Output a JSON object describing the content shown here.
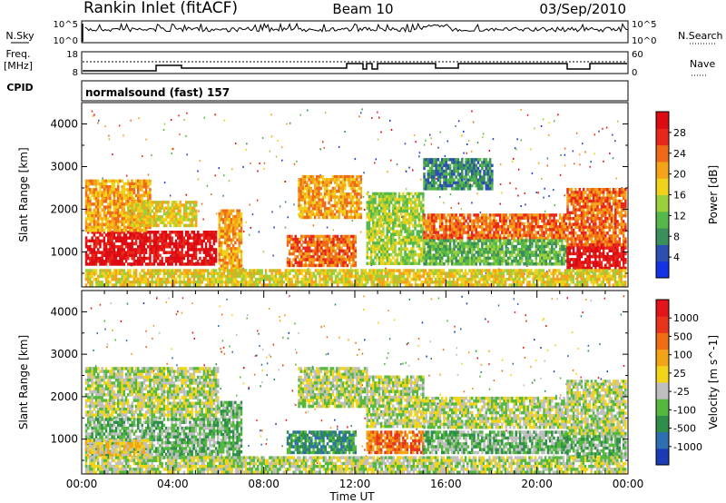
{
  "header": {
    "station": "Rankin Inlet (fitACF)",
    "beam": "Beam 10",
    "date": "03/Sep/2010"
  },
  "summary": {
    "nsky_label": "N.Sky",
    "nsky_ticks": [
      "10^5",
      "10^0"
    ],
    "nsearch_label": "N.Search",
    "nsearch_ticks": [
      "10^5",
      "10^0"
    ],
    "freq_label": "Freq.",
    "freq_unit": "[MHz]",
    "freq_ticks": [
      "18",
      "8"
    ],
    "nave_label": "Nave",
    "nave_ticks": [
      "60",
      "0"
    ],
    "cpid_label": "CPID",
    "mode_text": "normalsound (fast) 157"
  },
  "chart_data": [
    {
      "type": "heatmap",
      "panel": "power",
      "ylabel": "Slant Range [km]",
      "ylim": [
        180,
        4500
      ],
      "yticks": [
        1000,
        2000,
        3000,
        4000
      ],
      "colorbar_label": "Power [dB]",
      "colorbar_ticks": [
        "28",
        "24",
        "20",
        "16",
        "12",
        "8",
        "4"
      ],
      "colors": [
        "#1433e6",
        "#2c4fb0",
        "#3a8f5a",
        "#55b84b",
        "#9ccf3c",
        "#f0d21a",
        "#f5a318",
        "#ef6a18",
        "#e8271a",
        "#dd0b12"
      ],
      "regions": [
        {
          "t": [
            0.15,
            5.9
          ],
          "r": [
            700,
            1500
          ],
          "level": 9
        },
        {
          "t": [
            0.15,
            3.0
          ],
          "r": [
            1500,
            2700
          ],
          "level": 6
        },
        {
          "t": [
            2.0,
            5.0
          ],
          "r": [
            1600,
            2200
          ],
          "level": 5
        },
        {
          "t": [
            6.0,
            7.0
          ],
          "r": [
            600,
            2000
          ],
          "level": 6
        },
        {
          "t": [
            9.0,
            12.0
          ],
          "r": [
            700,
            1400
          ],
          "level": 7
        },
        {
          "t": [
            9.5,
            12.3
          ],
          "r": [
            1800,
            2800
          ],
          "level": 6
        },
        {
          "t": [
            12.5,
            15.0
          ],
          "r": [
            700,
            2400
          ],
          "level": 4
        },
        {
          "t": [
            15.0,
            21.3
          ],
          "r": [
            1300,
            1900
          ],
          "level": 7
        },
        {
          "t": [
            15.0,
            21.3
          ],
          "r": [
            700,
            1300
          ],
          "level": 3
        },
        {
          "t": [
            21.3,
            23.9
          ],
          "r": [
            600,
            1200
          ],
          "level": 9
        },
        {
          "t": [
            21.3,
            23.9
          ],
          "r": [
            1200,
            2500
          ],
          "level": 7
        },
        {
          "t": [
            0.15,
            23.9
          ],
          "r": [
            200,
            600
          ],
          "level": 5
        },
        {
          "t": [
            15.0,
            18.0
          ],
          "r": [
            2500,
            3200
          ],
          "level": 2
        }
      ]
    },
    {
      "type": "heatmap",
      "panel": "velocity",
      "ylabel": "Slant Range [km]",
      "ylim": [
        180,
        4500
      ],
      "yticks": [
        1000,
        2000,
        3000,
        4000
      ],
      "colorbar_label": "Velocity [m s^-1]",
      "colorbar_ticks": [
        "1000",
        "500",
        "100",
        "25",
        "-25",
        "-100",
        "-500",
        "-1000"
      ],
      "colors": [
        "#1a3db6",
        "#2d6fb0",
        "#2f8f4a",
        "#56b93f",
        "#bfbfbf",
        "#f2d51a",
        "#f2a316",
        "#ef6e14",
        "#e8341a",
        "#e3141a"
      ],
      "regions": [
        {
          "t": [
            0.15,
            6.0
          ],
          "r": [
            1500,
            2700
          ],
          "level": 4
        },
        {
          "t": [
            0.15,
            6.0
          ],
          "r": [
            600,
            1500
          ],
          "level": 3
        },
        {
          "t": [
            0.15,
            3.0
          ],
          "r": [
            600,
            1000
          ],
          "level": 5
        },
        {
          "t": [
            6.0,
            7.0
          ],
          "r": [
            600,
            1900
          ],
          "level": 3
        },
        {
          "t": [
            9.0,
            12.0
          ],
          "r": [
            700,
            1200
          ],
          "level": 2
        },
        {
          "t": [
            9.5,
            12.5
          ],
          "r": [
            1800,
            2700
          ],
          "level": 4
        },
        {
          "t": [
            12.5,
            15.0
          ],
          "r": [
            700,
            1200
          ],
          "level": 7
        },
        {
          "t": [
            12.5,
            15.0
          ],
          "r": [
            1300,
            2500
          ],
          "level": 4
        },
        {
          "t": [
            15.0,
            21.3
          ],
          "r": [
            1300,
            2000
          ],
          "level": 4
        },
        {
          "t": [
            15.0,
            21.3
          ],
          "r": [
            700,
            1200
          ],
          "level": 3
        },
        {
          "t": [
            21.3,
            23.9
          ],
          "r": [
            600,
            1100
          ],
          "level": 3
        },
        {
          "t": [
            21.3,
            23.9
          ],
          "r": [
            1100,
            2400
          ],
          "level": 4
        },
        {
          "t": [
            0.15,
            23.9
          ],
          "r": [
            200,
            600
          ],
          "level": 4
        }
      ]
    }
  ],
  "xaxis": {
    "label": "Time UT",
    "tick_labels": [
      "00:00",
      "04:00",
      "08:00",
      "12:00",
      "16:00",
      "20:00",
      "00:00"
    ],
    "range_hours": [
      0,
      24
    ]
  }
}
